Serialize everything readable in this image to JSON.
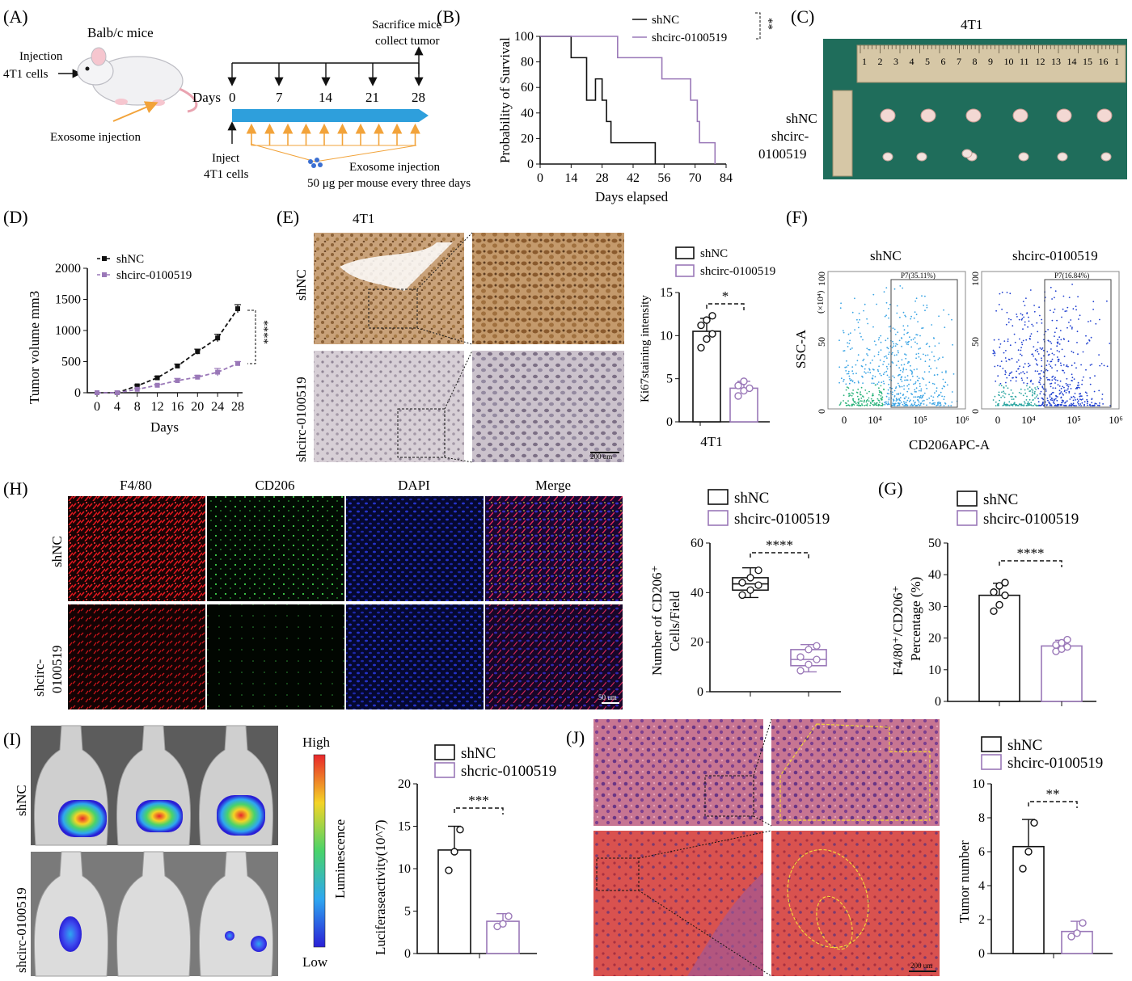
{
  "panelA": {
    "letter": "(A)",
    "mouse_strain": "Balb/c mice",
    "injection_label_1": "Injection",
    "injection_label_2": "4T1 cells",
    "exosome_injection": "Exosome injection",
    "sacrifice_1": "Sacrifice mice",
    "sacrifice_2": "collect tumor",
    "days_label": "Days",
    "day_ticks": [
      "0",
      "7",
      "14",
      "21",
      "28"
    ],
    "inject_1": "Inject",
    "inject_2": "4T1 cells",
    "exosome_injection_2": "Exosome injection",
    "dose": "50 μg per mouse every three days"
  },
  "panelB": {
    "letter": "(B)",
    "chart_data": {
      "type": "line",
      "ylabel": "Probability of Survival",
      "xlabel": "Days elapsed",
      "xlim": [
        0,
        84
      ],
      "ylim": [
        0,
        100
      ],
      "xticks": [
        "0",
        "14",
        "28",
        "42",
        "56",
        "70",
        "84"
      ],
      "yticks": [
        "0",
        "20",
        "40",
        "60",
        "80",
        "100"
      ],
      "series": [
        {
          "name": "shNC",
          "color": "#111111",
          "steps": [
            [
              0,
              100
            ],
            [
              14,
              100
            ],
            [
              14,
              83.3
            ],
            [
              21,
              83.3
            ],
            [
              21,
              50
            ],
            [
              25,
              50
            ],
            [
              25,
              66.7
            ],
            [
              28,
              66.7
            ],
            [
              28,
              50
            ],
            [
              30,
              50
            ],
            [
              30,
              33.3
            ],
            [
              32,
              33.3
            ],
            [
              32,
              16.7
            ],
            [
              38,
              16.7
            ],
            [
              38,
              16.7
            ],
            [
              52,
              16.7
            ],
            [
              52,
              0
            ]
          ]
        },
        {
          "name": "shcirc-0100519",
          "color": "#9a78b8",
          "steps": [
            [
              0,
              100
            ],
            [
              35,
              100
            ],
            [
              35,
              83.3
            ],
            [
              55,
              83.3
            ],
            [
              55,
              66.7
            ],
            [
              68,
              66.7
            ],
            [
              68,
              50
            ],
            [
              71,
              50
            ],
            [
              71,
              33.3
            ],
            [
              72,
              33.3
            ],
            [
              72,
              16.7
            ],
            [
              79,
              16.7
            ],
            [
              79,
              0
            ]
          ]
        }
      ],
      "significance": "**"
    }
  },
  "panelC": {
    "letter": "(C)",
    "title": "4T1",
    "row1": "shNC",
    "row2_1": "shcirc-",
    "row2_2": "0100519",
    "ruler_numbers": [
      "1",
      "2",
      "3",
      "4",
      "5",
      "6",
      "7",
      "8",
      "9",
      "10",
      "11",
      "12",
      "13",
      "14",
      "15",
      "16",
      "1"
    ]
  },
  "panelD": {
    "letter": "(D)",
    "chart_data": {
      "type": "line",
      "ylabel": "Tumor volume mm3",
      "xlabel": "Days",
      "x": [
        0,
        4,
        8,
        12,
        16,
        20,
        24,
        28
      ],
      "xticks": [
        "0",
        "4",
        "8",
        "12",
        "16",
        "20",
        "24",
        "28"
      ],
      "yticks": [
        "0",
        "500",
        "1000",
        "1500",
        "2000"
      ],
      "ylim": [
        0,
        2000
      ],
      "series": [
        {
          "name": "shNC",
          "color": "#111111",
          "values": [
            0,
            0,
            110,
            240,
            430,
            660,
            880,
            1350
          ],
          "err": [
            0,
            0,
            15,
            25,
            30,
            40,
            60,
            65
          ]
        },
        {
          "name": "shcirc-0100519",
          "color": "#9a78b8",
          "values": [
            0,
            0,
            55,
            120,
            195,
            250,
            330,
            470
          ],
          "err": [
            0,
            0,
            10,
            15,
            35,
            30,
            60,
            30
          ]
        }
      ],
      "significance": "****"
    }
  },
  "panelE": {
    "letter": "(E)",
    "title": "4T1",
    "row1": "shNC",
    "row2": "shcirc-0100519",
    "scale": "200 um",
    "chart_data": {
      "type": "bar",
      "categories": [
        "4T1"
      ],
      "ylabel": "Ki67staining intensity",
      "ylim": [
        0,
        15
      ],
      "yticks": [
        "0",
        "5",
        "10",
        "15"
      ],
      "legend": [
        "shNC",
        "shcirc-0100519"
      ],
      "series": [
        {
          "name": "shNC",
          "value": 10.5,
          "err": 1.5,
          "points": [
            8.6,
            9.6,
            10.2,
            11.2,
            11.8,
            12.3
          ]
        },
        {
          "name": "shcirc-0100519",
          "value": 3.9,
          "err": 0.8,
          "points": [
            3.0,
            3.6,
            3.9,
            4.2,
            4.7
          ]
        }
      ],
      "significance": "*"
    }
  },
  "panelF": {
    "letter": "(F)",
    "title1": "shNC",
    "title2": "shcirc-0100519",
    "gate1": "P7(35.11%)",
    "gate2": "P7(16.84%)",
    "ylabel": "SSC-A",
    "yunit": "(×10⁴)",
    "xlabel": "CD206APC-A",
    "yticks": [
      "0",
      "50",
      "100"
    ],
    "xticks": [
      "0",
      "10⁴",
      "10⁵",
      "10⁶"
    ]
  },
  "panelH": {
    "letter": "(H)",
    "cols": [
      "F4/80",
      "CD206",
      "DAPI",
      "Merge"
    ],
    "row1": "shNC",
    "row2_1": "shcirc-",
    "row2_2": "0100519",
    "scale": "50 um",
    "chart_data": {
      "type": "box",
      "ylabel_1": "Number of CD206⁺",
      "ylabel_2": "Cells/Field",
      "ylim": [
        0,
        60
      ],
      "yticks": [
        "0",
        "20",
        "40",
        "60"
      ],
      "legend": [
        "shNC",
        "shcirc-0100519"
      ],
      "series": [
        {
          "name": "shNC",
          "min": 38,
          "q1": 41,
          "median": 43.5,
          "q3": 46,
          "max": 50,
          "points": [
            39,
            41,
            43,
            44,
            46,
            49
          ]
        },
        {
          "name": "shcirc-0100519",
          "min": 8,
          "q1": 10.5,
          "median": 13,
          "q3": 17,
          "max": 19,
          "points": [
            8.5,
            11,
            13,
            14,
            17,
            18.5
          ]
        }
      ],
      "significance": "****"
    }
  },
  "panelG": {
    "letter": "(G)",
    "chart_data": {
      "type": "bar",
      "ylabel_1": "F4/80⁺/CD206⁺",
      "ylabel_2": "Percentage (%)",
      "ylim": [
        0,
        50
      ],
      "yticks": [
        "0",
        "10",
        "20",
        "30",
        "40",
        "50"
      ],
      "legend": [
        "shNC",
        "shcirc-0100519"
      ],
      "series": [
        {
          "name": "shNC",
          "value": 33.5,
          "err": 3.8,
          "points": [
            28.5,
            30.5,
            33.5,
            34.5,
            36.5,
            37.5
          ]
        },
        {
          "name": "shcirc-0100519",
          "value": 17.5,
          "err": 1.8,
          "points": [
            15.8,
            16.5,
            17.2,
            17.8,
            18.5,
            19.5
          ]
        }
      ],
      "significance": "****"
    }
  },
  "panelI": {
    "letter": "(I)",
    "row1": "shNC",
    "row2": "shcirc-0100519",
    "scale_high": "High",
    "scale_low": "Low",
    "scale_label": "Luminescence",
    "chart_data": {
      "type": "bar",
      "ylabel": "Luciferaseactivity(10^7)",
      "ylim": [
        0,
        20
      ],
      "yticks": [
        "0",
        "5",
        "10",
        "15",
        "20"
      ],
      "legend": [
        "shNC",
        "shcric-0100519"
      ],
      "series": [
        {
          "name": "shNC",
          "value": 12.2,
          "err": 2.8,
          "points": [
            9.8,
            12.0,
            14.6
          ]
        },
        {
          "name": "shcric-0100519",
          "value": 3.8,
          "err": 0.9,
          "points": [
            3.2,
            3.5,
            4.4
          ]
        }
      ],
      "significance": "***"
    }
  },
  "panelJ": {
    "letter": "(J)",
    "scale": "200 um",
    "chart_data": {
      "type": "bar",
      "ylabel": "Tumor number",
      "ylim": [
        0,
        10
      ],
      "yticks": [
        "0",
        "2",
        "4",
        "6",
        "8",
        "10"
      ],
      "legend": [
        "shNC",
        "shcirc-0100519"
      ],
      "series": [
        {
          "name": "shNC",
          "value": 6.3,
          "err": 1.6,
          "points": [
            5.0,
            6.0,
            7.7
          ]
        },
        {
          "name": "shcirc-0100519",
          "value": 1.3,
          "err": 0.6,
          "points": [
            1.0,
            1.2,
            1.8
          ]
        }
      ],
      "significance": "**"
    }
  },
  "colors": {
    "purple": "#9a78b8",
    "blue_arrow": "#2e9fdc",
    "orange": "#f2a33a",
    "tissue_green": "#1f6d5b"
  }
}
